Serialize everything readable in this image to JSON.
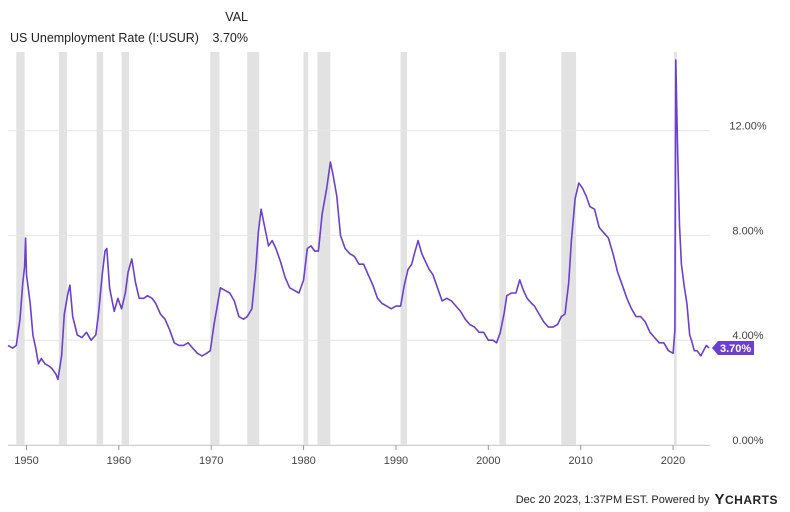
{
  "legend": {
    "value_header": "VAL",
    "series_name": "US Unemployment Rate (I:USUR)",
    "series_value": "3.70%"
  },
  "footer": {
    "timestamp": "Dec 20 2023, 1:37PM EST.",
    "powered_by": "Powered by",
    "brand_y": "Y",
    "brand_rest": "CHARTS"
  },
  "colors": {
    "series": "#6b3fd0",
    "recession": "#e2e2e2",
    "grid": "#e6e6e6",
    "badge": "#6b3fd0"
  },
  "chart_data": {
    "type": "line",
    "x_axis": "time",
    "xlim": [
      1948,
      2024
    ],
    "ylim": [
      0,
      15
    ],
    "x_ticks": [
      "1950",
      "1960",
      "1970",
      "1980",
      "1990",
      "2000",
      "2010",
      "2020"
    ],
    "y_ticks": [
      {
        "value": 0,
        "label": "0.00%"
      },
      {
        "value": 4,
        "label": "4.00%"
      },
      {
        "value": 8,
        "label": "8.00%"
      },
      {
        "value": 12,
        "label": "12.00%"
      }
    ],
    "grid": "horizontal",
    "last_value_label": "3.70%",
    "recessions": [
      [
        1948.9,
        1949.8
      ],
      [
        1953.5,
        1954.4
      ],
      [
        1957.6,
        1958.3
      ],
      [
        1960.3,
        1961.1
      ],
      [
        1969.9,
        1970.9
      ],
      [
        1973.9,
        1975.2
      ],
      [
        1980.0,
        1980.5
      ],
      [
        1981.5,
        1982.9
      ],
      [
        1990.5,
        1991.2
      ],
      [
        2001.2,
        2001.9
      ],
      [
        2007.9,
        2009.5
      ],
      [
        2020.1,
        2020.4
      ]
    ],
    "series": [
      {
        "name": "US Unemployment Rate (I:USUR)",
        "points": [
          [
            1948.0,
            3.8
          ],
          [
            1948.5,
            3.7
          ],
          [
            1948.9,
            3.8
          ],
          [
            1949.3,
            4.8
          ],
          [
            1949.6,
            6.2
          ],
          [
            1949.8,
            6.8
          ],
          [
            1949.9,
            7.9
          ],
          [
            1950.0,
            6.5
          ],
          [
            1950.4,
            5.4
          ],
          [
            1950.7,
            4.2
          ],
          [
            1951.0,
            3.7
          ],
          [
            1951.3,
            3.1
          ],
          [
            1951.6,
            3.3
          ],
          [
            1952.0,
            3.1
          ],
          [
            1952.5,
            3.0
          ],
          [
            1952.8,
            2.9
          ],
          [
            1953.2,
            2.7
          ],
          [
            1953.4,
            2.5
          ],
          [
            1953.8,
            3.4
          ],
          [
            1954.1,
            5.0
          ],
          [
            1954.5,
            5.8
          ],
          [
            1954.7,
            6.1
          ],
          [
            1955.0,
            4.9
          ],
          [
            1955.5,
            4.2
          ],
          [
            1956.0,
            4.1
          ],
          [
            1956.5,
            4.3
          ],
          [
            1957.0,
            4.0
          ],
          [
            1957.5,
            4.2
          ],
          [
            1957.8,
            5.0
          ],
          [
            1958.2,
            6.5
          ],
          [
            1958.5,
            7.4
          ],
          [
            1958.7,
            7.5
          ],
          [
            1959.0,
            6.0
          ],
          [
            1959.5,
            5.1
          ],
          [
            1959.9,
            5.6
          ],
          [
            1960.3,
            5.2
          ],
          [
            1960.7,
            5.8
          ],
          [
            1961.0,
            6.6
          ],
          [
            1961.4,
            7.1
          ],
          [
            1961.8,
            6.2
          ],
          [
            1962.2,
            5.6
          ],
          [
            1962.7,
            5.6
          ],
          [
            1963.1,
            5.7
          ],
          [
            1963.6,
            5.6
          ],
          [
            1964.0,
            5.4
          ],
          [
            1964.5,
            5.0
          ],
          [
            1965.0,
            4.8
          ],
          [
            1965.5,
            4.4
          ],
          [
            1966.0,
            3.9
          ],
          [
            1966.5,
            3.8
          ],
          [
            1967.0,
            3.8
          ],
          [
            1967.5,
            3.9
          ],
          [
            1968.0,
            3.7
          ],
          [
            1968.5,
            3.5
          ],
          [
            1969.0,
            3.4
          ],
          [
            1969.5,
            3.5
          ],
          [
            1969.9,
            3.6
          ],
          [
            1970.3,
            4.6
          ],
          [
            1970.7,
            5.4
          ],
          [
            1971.0,
            6.0
          ],
          [
            1971.5,
            5.9
          ],
          [
            1972.0,
            5.8
          ],
          [
            1972.5,
            5.5
          ],
          [
            1973.0,
            4.9
          ],
          [
            1973.5,
            4.8
          ],
          [
            1973.9,
            4.9
          ],
          [
            1974.4,
            5.2
          ],
          [
            1974.8,
            6.6
          ],
          [
            1975.1,
            8.1
          ],
          [
            1975.4,
            9.0
          ],
          [
            1975.8,
            8.3
          ],
          [
            1976.2,
            7.6
          ],
          [
            1976.6,
            7.8
          ],
          [
            1977.0,
            7.5
          ],
          [
            1977.5,
            7.0
          ],
          [
            1978.0,
            6.4
          ],
          [
            1978.5,
            6.0
          ],
          [
            1979.0,
            5.9
          ],
          [
            1979.5,
            5.8
          ],
          [
            1980.0,
            6.3
          ],
          [
            1980.4,
            7.5
          ],
          [
            1980.8,
            7.6
          ],
          [
            1981.2,
            7.4
          ],
          [
            1981.6,
            7.4
          ],
          [
            1982.0,
            8.8
          ],
          [
            1982.5,
            9.8
          ],
          [
            1982.9,
            10.8
          ],
          [
            1983.2,
            10.3
          ],
          [
            1983.6,
            9.5
          ],
          [
            1984.0,
            8.0
          ],
          [
            1984.5,
            7.5
          ],
          [
            1985.0,
            7.3
          ],
          [
            1985.5,
            7.2
          ],
          [
            1986.0,
            6.9
          ],
          [
            1986.5,
            6.9
          ],
          [
            1987.0,
            6.5
          ],
          [
            1987.5,
            6.1
          ],
          [
            1988.0,
            5.6
          ],
          [
            1988.5,
            5.4
          ],
          [
            1989.0,
            5.3
          ],
          [
            1989.5,
            5.2
          ],
          [
            1990.0,
            5.3
          ],
          [
            1990.5,
            5.3
          ],
          [
            1990.9,
            6.1
          ],
          [
            1991.3,
            6.7
          ],
          [
            1991.7,
            6.9
          ],
          [
            1992.0,
            7.3
          ],
          [
            1992.4,
            7.8
          ],
          [
            1992.8,
            7.3
          ],
          [
            1993.2,
            7.0
          ],
          [
            1993.6,
            6.7
          ],
          [
            1994.0,
            6.5
          ],
          [
            1994.5,
            6.0
          ],
          [
            1995.0,
            5.5
          ],
          [
            1995.5,
            5.6
          ],
          [
            1996.0,
            5.5
          ],
          [
            1996.5,
            5.3
          ],
          [
            1997.0,
            5.1
          ],
          [
            1997.5,
            4.8
          ],
          [
            1998.0,
            4.6
          ],
          [
            1998.5,
            4.5
          ],
          [
            1999.0,
            4.3
          ],
          [
            1999.5,
            4.3
          ],
          [
            2000.0,
            4.0
          ],
          [
            2000.5,
            4.0
          ],
          [
            2000.9,
            3.9
          ],
          [
            2001.3,
            4.3
          ],
          [
            2001.7,
            5.0
          ],
          [
            2002.0,
            5.7
          ],
          [
            2002.5,
            5.8
          ],
          [
            2003.0,
            5.8
          ],
          [
            2003.4,
            6.3
          ],
          [
            2003.8,
            5.9
          ],
          [
            2004.2,
            5.6
          ],
          [
            2004.7,
            5.4
          ],
          [
            2005.0,
            5.3
          ],
          [
            2005.5,
            5.0
          ],
          [
            2006.0,
            4.7
          ],
          [
            2006.5,
            4.5
          ],
          [
            2007.0,
            4.5
          ],
          [
            2007.5,
            4.6
          ],
          [
            2007.9,
            4.9
          ],
          [
            2008.3,
            5.0
          ],
          [
            2008.7,
            6.2
          ],
          [
            2009.0,
            7.8
          ],
          [
            2009.4,
            9.4
          ],
          [
            2009.8,
            10.0
          ],
          [
            2010.2,
            9.8
          ],
          [
            2010.6,
            9.5
          ],
          [
            2011.0,
            9.1
          ],
          [
            2011.5,
            9.0
          ],
          [
            2012.0,
            8.3
          ],
          [
            2012.5,
            8.1
          ],
          [
            2013.0,
            7.9
          ],
          [
            2013.5,
            7.3
          ],
          [
            2014.0,
            6.6
          ],
          [
            2014.5,
            6.1
          ],
          [
            2015.0,
            5.6
          ],
          [
            2015.5,
            5.2
          ],
          [
            2016.0,
            4.9
          ],
          [
            2016.5,
            4.9
          ],
          [
            2017.0,
            4.7
          ],
          [
            2017.5,
            4.3
          ],
          [
            2018.0,
            4.1
          ],
          [
            2018.5,
            3.9
          ],
          [
            2019.0,
            3.9
          ],
          [
            2019.5,
            3.6
          ],
          [
            2020.0,
            3.5
          ],
          [
            2020.2,
            4.4
          ],
          [
            2020.3,
            14.7
          ],
          [
            2020.5,
            11.1
          ],
          [
            2020.7,
            8.4
          ],
          [
            2020.9,
            6.9
          ],
          [
            2021.2,
            6.1
          ],
          [
            2021.5,
            5.4
          ],
          [
            2021.8,
            4.2
          ],
          [
            2022.0,
            4.0
          ],
          [
            2022.3,
            3.6
          ],
          [
            2022.6,
            3.6
          ],
          [
            2023.0,
            3.4
          ],
          [
            2023.3,
            3.6
          ],
          [
            2023.6,
            3.8
          ],
          [
            2023.9,
            3.7
          ]
        ]
      }
    ]
  }
}
